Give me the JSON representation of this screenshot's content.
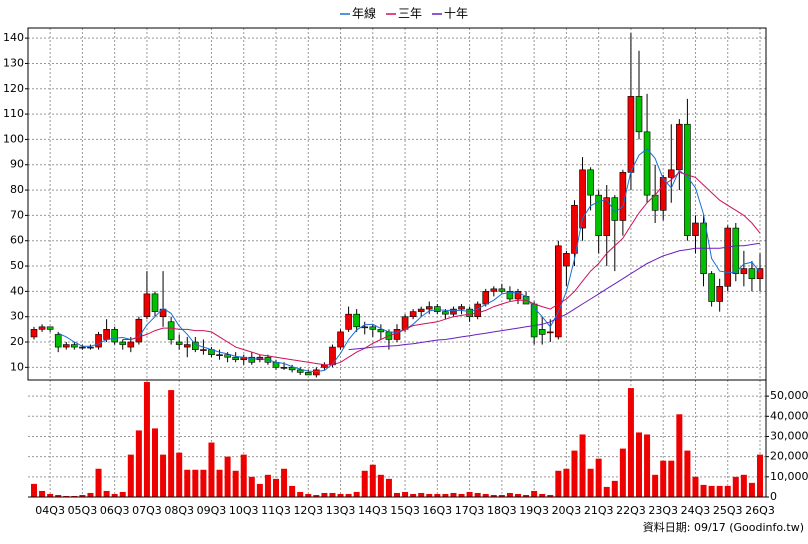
{
  "chart_data": [
    {
      "type": "candlestick",
      "up_color": "#ee0000",
      "down_color": "#00c000",
      "grid": true,
      "categories": [
        null,
        null,
        "04Q3",
        null,
        null,
        null,
        "05Q3",
        null,
        null,
        null,
        "06Q3",
        null,
        null,
        null,
        "07Q3",
        null,
        null,
        null,
        "08Q3",
        null,
        null,
        null,
        "09Q3",
        null,
        null,
        null,
        "10Q3",
        null,
        null,
        null,
        "11Q3",
        null,
        null,
        null,
        "12Q3",
        null,
        null,
        null,
        "13Q3",
        null,
        null,
        null,
        "14Q3",
        null,
        null,
        null,
        "15Q3",
        null,
        null,
        null,
        "16Q3",
        null,
        null,
        null,
        "17Q3",
        null,
        null,
        null,
        "18Q3",
        null,
        null,
        null,
        "19Q3",
        null,
        null,
        null,
        "20Q3",
        null,
        null,
        null,
        "21Q3",
        null,
        null,
        null,
        "22Q3",
        null,
        null,
        null,
        "23Q3",
        null,
        null,
        null,
        "24Q3",
        null,
        null,
        null,
        "25Q3",
        null,
        null,
        null,
        "26Q3"
      ],
      "open": [
        22,
        25,
        26,
        23,
        18,
        19,
        18,
        18,
        18,
        21,
        25,
        20,
        18,
        20,
        30,
        39,
        30,
        28,
        20,
        18,
        20,
        17,
        17,
        15,
        15,
        14,
        13,
        14,
        13,
        14,
        12,
        10,
        10,
        9,
        8,
        7,
        10,
        11,
        18,
        25,
        31,
        26,
        26,
        25,
        24,
        21,
        25,
        30,
        32,
        33,
        34,
        32,
        31,
        33,
        33,
        30,
        35,
        40,
        41,
        40,
        37,
        38,
        35,
        25,
        24,
        22,
        50,
        55,
        65,
        88,
        78,
        62,
        77,
        68,
        87,
        117,
        103,
        78,
        72,
        85,
        88,
        106,
        62,
        67,
        47,
        36,
        42,
        65,
        47,
        49,
        45
      ],
      "high": [
        26,
        27,
        26,
        24,
        20,
        20,
        19,
        19,
        24,
        29,
        26,
        21,
        22,
        30,
        48,
        40,
        48,
        30,
        23,
        22,
        22,
        21,
        18,
        17,
        16,
        16,
        15,
        16,
        15,
        15,
        13,
        12,
        11,
        10,
        9,
        10,
        12,
        19,
        25,
        34,
        33,
        28,
        27,
        27,
        25,
        27,
        31,
        33,
        34,
        36,
        35,
        33,
        34,
        35,
        34,
        36,
        41,
        42,
        43,
        42,
        41,
        40,
        36,
        30,
        29,
        60,
        56,
        76,
        93,
        89,
        80,
        82,
        78,
        88,
        142,
        135,
        118,
        90,
        86,
        106,
        108,
        116,
        70,
        70,
        48,
        45,
        66,
        67,
        56,
        52,
        55
      ],
      "low": [
        21,
        24,
        24,
        16,
        17,
        17,
        17,
        17,
        17,
        20,
        19,
        17,
        16,
        19,
        29,
        30,
        26,
        19,
        17,
        14,
        16,
        15,
        14,
        13,
        12,
        12,
        11,
        11,
        12,
        11,
        9,
        9,
        8,
        7,
        7,
        6,
        9,
        10,
        17,
        24,
        24,
        23,
        22,
        21,
        17,
        20,
        24,
        29,
        30,
        31,
        31,
        29,
        30,
        31,
        28,
        29,
        34,
        38,
        39,
        36,
        35,
        35,
        19,
        19,
        20,
        21,
        42,
        50,
        60,
        72,
        55,
        50,
        48,
        62,
        80,
        100,
        75,
        67,
        68,
        75,
        80,
        60,
        55,
        42,
        34,
        32,
        40,
        44,
        42,
        40,
        40
      ],
      "close": [
        25,
        26,
        25,
        18,
        19,
        18,
        18,
        18,
        23,
        25,
        20,
        19,
        20,
        29,
        39,
        32,
        33,
        21,
        19,
        19,
        17,
        17,
        15,
        15,
        14,
        13,
        14,
        12,
        14,
        12,
        10,
        10,
        9,
        8,
        7,
        9,
        11,
        18,
        24,
        31,
        26,
        26,
        25,
        24,
        21,
        25,
        30,
        32,
        33,
        34,
        32,
        31,
        33,
        34,
        30,
        35,
        40,
        41,
        40,
        37,
        40,
        35,
        22,
        23,
        24,
        58,
        55,
        74,
        88,
        78,
        62,
        77,
        68,
        87,
        117,
        103,
        78,
        72,
        85,
        88,
        106,
        62,
        67,
        47,
        36,
        42,
        65,
        47,
        49,
        45,
        49
      ],
      "series": [
        {
          "name": "年線",
          "color": "#1a6fd6",
          "values": [
            null,
            null,
            null,
            23.5,
            22,
            20,
            18.3,
            18.3,
            19.3,
            21,
            21.5,
            21.8,
            21,
            22,
            26.8,
            30,
            33.3,
            31.3,
            26.3,
            23,
            19,
            18,
            17,
            16,
            15.3,
            14.3,
            14,
            13.3,
            13.3,
            13,
            12,
            11.5,
            10.3,
            9.3,
            8.5,
            8.3,
            8.8,
            11.3,
            15.5,
            21,
            24.8,
            26.8,
            27,
            25.3,
            24,
            23.8,
            25,
            27,
            30,
            32.3,
            32.8,
            32.5,
            32.5,
            32.5,
            32,
            33,
            34.8,
            36.5,
            39,
            39.5,
            39.5,
            38,
            33.5,
            30,
            26,
            31.8,
            40,
            52.8,
            68.8,
            73.8,
            75.5,
            76.3,
            71.3,
            73.5,
            87.3,
            93.8,
            96.3,
            92.5,
            84.5,
            80.8,
            87.8,
            85.3,
            80.8,
            70.5,
            53,
            48,
            47.5,
            47.5,
            50.8,
            51.5,
            47.5
          ]
        },
        {
          "name": "三年",
          "color": "#d0105a",
          "values": [
            null,
            null,
            null,
            null,
            null,
            null,
            null,
            null,
            null,
            null,
            null,
            21,
            21,
            22,
            23,
            24.5,
            25.5,
            25.5,
            25,
            25,
            24.5,
            24.5,
            24,
            22,
            20,
            18,
            17,
            16,
            15,
            14.5,
            14,
            13.5,
            13,
            12.5,
            12,
            11.5,
            11,
            11,
            12,
            14,
            16,
            17.5,
            19.5,
            21,
            22.5,
            23.5,
            25,
            26.5,
            27,
            27.5,
            28,
            29,
            30,
            30.5,
            31,
            31.5,
            32.5,
            34,
            35,
            36,
            36.5,
            36.5,
            35,
            34,
            33,
            35,
            37,
            40,
            44,
            48,
            51,
            55,
            58,
            61,
            66,
            71,
            75,
            78,
            82,
            84,
            87,
            86,
            85,
            82,
            79,
            76,
            74,
            72,
            70,
            67,
            63
          ]
        },
        {
          "name": "十年",
          "color": "#6a1fc0",
          "values": [
            null,
            null,
            null,
            null,
            null,
            null,
            null,
            null,
            null,
            null,
            null,
            null,
            null,
            null,
            null,
            null,
            null,
            null,
            null,
            null,
            null,
            null,
            null,
            null,
            null,
            null,
            null,
            null,
            null,
            null,
            null,
            null,
            null,
            null,
            null,
            null,
            null,
            null,
            null,
            17,
            17.3,
            17.6,
            18,
            18.2,
            18.4,
            18.6,
            19,
            19.3,
            19.8,
            20.3,
            20.8,
            21,
            21.5,
            22,
            22.5,
            23,
            23.5,
            24,
            24.5,
            25,
            25.5,
            26,
            26.5,
            27,
            28,
            29.5,
            31,
            33,
            35,
            37,
            39,
            41,
            43,
            45,
            47,
            49,
            51,
            52.5,
            54,
            55,
            56,
            56.5,
            57,
            57,
            57,
            57,
            57.5,
            58,
            58,
            58.5,
            59
          ]
        }
      ],
      "ylim": [
        5,
        144
      ],
      "yticks": [
        10,
        20,
        30,
        40,
        50,
        60,
        70,
        80,
        90,
        100,
        110,
        120,
        130,
        140
      ]
    },
    {
      "type": "bar",
      "color": "#ee0000",
      "grid": true,
      "values": [
        6500,
        3000,
        1500,
        1000,
        500,
        500,
        1000,
        2000,
        14000,
        3000,
        1500,
        2500,
        21000,
        33000,
        57000,
        34000,
        21000,
        53000,
        22000,
        13500,
        13500,
        13500,
        27000,
        13500,
        20000,
        13000,
        21000,
        10000,
        6500,
        11000,
        9000,
        14000,
        5500,
        2500,
        1500,
        1000,
        2000,
        2000,
        1500,
        1500,
        2500,
        13000,
        16000,
        11000,
        9000,
        2000,
        2500,
        1500,
        2000,
        1500,
        1500,
        1500,
        2000,
        1500,
        2500,
        2000,
        1500,
        1000,
        1000,
        2000,
        1500,
        1000,
        3000,
        1500,
        1000,
        13000,
        14000,
        23000,
        31000,
        14000,
        19000,
        5000,
        8000,
        24000,
        54000,
        32000,
        31000,
        11000,
        18000,
        18000,
        41000,
        23000,
        10000,
        6000,
        5500,
        5500,
        5500,
        10000,
        11000,
        7000,
        21000
      ],
      "ylim": [
        0,
        58000
      ],
      "yticks": [
        0,
        {
          "value": 10000,
          "label": "10,000"
        },
        {
          "value": 20000,
          "label": "20,000"
        },
        {
          "value": 30000,
          "label": "30,000"
        },
        {
          "value": 40000,
          "label": "40,000"
        },
        {
          "value": 50000,
          "label": "50,000"
        }
      ],
      "note": "資料日期: 09/17  (Goodinfo.tw)"
    }
  ]
}
